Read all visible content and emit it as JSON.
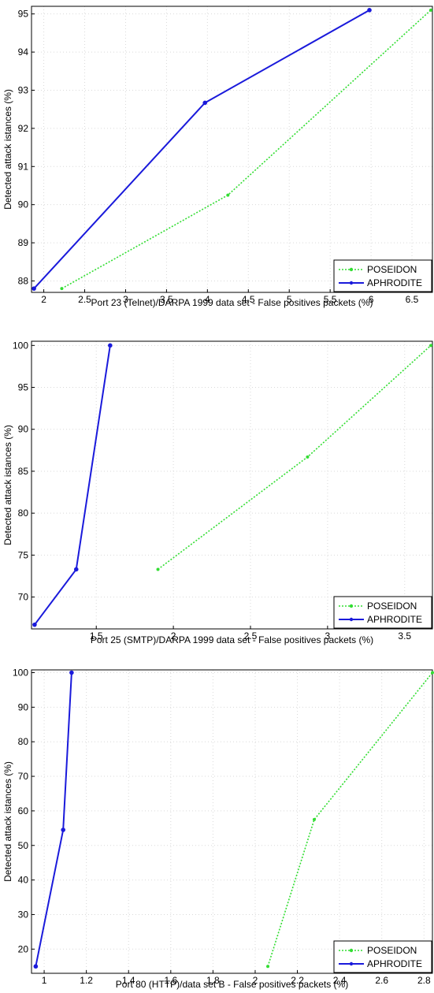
{
  "chart_data": [
    {
      "type": "line",
      "xlabel": "Port 23 (Telnet)/DARPA 1999 data set - False positives packets (%)",
      "ylabel": "Detected attack istances (%)",
      "xlim": [
        1.85,
        6.75
      ],
      "ylim": [
        87.7,
        95.2
      ],
      "xticks": [
        2,
        2.5,
        3,
        3.5,
        4,
        4.5,
        5,
        5.5,
        6,
        6.5
      ],
      "xtick_labels": [
        "2",
        "2.5",
        "3",
        "3.5",
        "4",
        "4.5",
        "5",
        "5.5",
        "6",
        "6.5"
      ],
      "yticks": [
        88,
        89,
        90,
        91,
        92,
        93,
        94,
        95
      ],
      "ytick_labels": [
        "88",
        "89",
        "90",
        "91",
        "92",
        "93",
        "94",
        "95"
      ],
      "grid": true,
      "legend_position": "bottom-right",
      "series": [
        {
          "name": "POSEIDON",
          "color": "#33dd33",
          "style": "dotted",
          "x": [
            2.22,
            4.25,
            6.73
          ],
          "y": [
            87.8,
            90.25,
            95.1
          ]
        },
        {
          "name": "APHRODITE",
          "color": "#1a1adb",
          "style": "solid",
          "x": [
            1.88,
            3.97,
            5.98
          ],
          "y": [
            87.8,
            92.67,
            95.1
          ]
        }
      ]
    },
    {
      "type": "line",
      "xlabel": "Port 25 (SMTP)/DARPA 1999 data set - False positives packets (%)",
      "ylabel": "Detected attack istances (%)",
      "xlim": [
        1.08,
        3.68
      ],
      "ylim": [
        66.2,
        100.5
      ],
      "xticks": [
        1.5,
        2,
        2.5,
        3,
        3.5
      ],
      "xtick_labels": [
        "1.5",
        "2",
        "2.5",
        "3",
        "3.5"
      ],
      "yticks": [
        70,
        75,
        80,
        85,
        90,
        95,
        100
      ],
      "ytick_labels": [
        "70",
        "75",
        "80",
        "85",
        "90",
        "95",
        "100"
      ],
      "grid": true,
      "legend_position": "bottom-right",
      "series": [
        {
          "name": "POSEIDON",
          "color": "#33dd33",
          "style": "dotted",
          "x": [
            1.9,
            2.87,
            3.67
          ],
          "y": [
            73.3,
            86.7,
            100
          ]
        },
        {
          "name": "APHRODITE",
          "color": "#1a1adb",
          "style": "solid",
          "x": [
            1.1,
            1.37,
            1.59
          ],
          "y": [
            66.7,
            73.3,
            100
          ]
        }
      ]
    },
    {
      "type": "line",
      "xlabel": "Port 80 (HTTP)/data set B - False positives packets (%)",
      "ylabel": "Detected attack istances (%)",
      "xlim": [
        0.94,
        2.84
      ],
      "ylim": [
        13,
        100.8
      ],
      "xticks": [
        1,
        1.2,
        1.4,
        1.6,
        1.8,
        2,
        2.2,
        2.4,
        2.6,
        2.8
      ],
      "xtick_labels": [
        "1",
        "1.2",
        "1.4",
        "1.6",
        "1.8",
        "2",
        "2.2",
        "2.4",
        "2.6",
        "2.8"
      ],
      "yticks": [
        20,
        30,
        40,
        50,
        60,
        70,
        80,
        90,
        100
      ],
      "ytick_labels": [
        "20",
        "30",
        "40",
        "50",
        "60",
        "70",
        "80",
        "90",
        "100"
      ],
      "grid": true,
      "legend_position": "bottom-right",
      "series": [
        {
          "name": "POSEIDON",
          "color": "#33dd33",
          "style": "dotted",
          "x": [
            2.06,
            2.28,
            2.84
          ],
          "y": [
            15,
            57.5,
            100
          ]
        },
        {
          "name": "APHRODITE",
          "color": "#1a1adb",
          "style": "solid",
          "x": [
            0.96,
            1.09,
            1.13
          ],
          "y": [
            15,
            54.5,
            100
          ]
        }
      ]
    }
  ]
}
